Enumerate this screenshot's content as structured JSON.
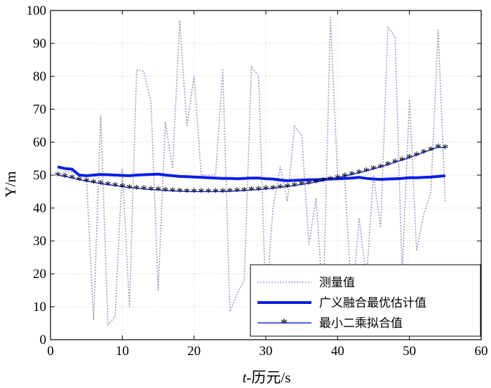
{
  "chart_data": {
    "type": "line",
    "title": "",
    "xlabel_italic": "t",
    "xlabel_rest": "-历元/s",
    "ylabel": "Y/m",
    "xlim": [
      0,
      60
    ],
    "ylim": [
      0,
      100
    ],
    "xticks": [
      0,
      10,
      20,
      30,
      40,
      50,
      60
    ],
    "yticks": [
      0,
      10,
      20,
      30,
      40,
      50,
      60,
      70,
      80,
      90,
      100
    ],
    "grid": true,
    "legend_position": "bottom-right",
    "colors": {
      "measured": "#9a9ac8",
      "fusion": "#0a1ee6",
      "lsq": "#1a2ed8"
    },
    "series": [
      {
        "name": "测量值",
        "style": "dotted",
        "x": [
          1,
          2,
          3,
          4,
          5,
          6,
          7,
          8,
          9,
          10,
          11,
          12,
          13,
          14,
          15,
          16,
          17,
          18,
          19,
          20,
          21,
          22,
          23,
          24,
          25,
          26,
          27,
          28,
          29,
          30,
          31,
          32,
          33,
          34,
          35,
          36,
          37,
          38,
          39,
          40,
          41,
          42,
          43,
          44,
          45,
          46,
          47,
          48,
          49,
          50,
          51,
          52,
          53,
          54,
          55
        ],
        "y": [
          50,
          51,
          51,
          50,
          50,
          6,
          68,
          4.5,
          7,
          52,
          10,
          82,
          81.5,
          72,
          15,
          66,
          52,
          97,
          65,
          80,
          50,
          50,
          50,
          82,
          8.5,
          14,
          18,
          83,
          80,
          10,
          40,
          52.5,
          42,
          65,
          62,
          29,
          43,
          10,
          98,
          49.5,
          49,
          10,
          37,
          18,
          50,
          34,
          95,
          92,
          20,
          73,
          27,
          38,
          45,
          94,
          42
        ]
      },
      {
        "name": "广义融合最优估计值",
        "style": "solid",
        "x": [
          1,
          2,
          3,
          4,
          5,
          6,
          7,
          8,
          9,
          10,
          11,
          12,
          13,
          14,
          15,
          16,
          17,
          18,
          19,
          20,
          21,
          22,
          23,
          24,
          25,
          26,
          27,
          28,
          29,
          30,
          31,
          32,
          33,
          34,
          35,
          36,
          37,
          38,
          39,
          40,
          41,
          42,
          43,
          44,
          45,
          46,
          47,
          48,
          49,
          50,
          51,
          52,
          53,
          54,
          55
        ],
        "y": [
          52.5,
          52,
          51.8,
          50,
          49.8,
          50,
          50.2,
          50.1,
          50,
          49.9,
          49.8,
          50,
          50.1,
          50.2,
          50.3,
          50,
          49.8,
          49.6,
          49.5,
          49.4,
          49.3,
          49.2,
          49.1,
          49,
          49,
          48.9,
          49,
          49.1,
          49.1,
          48.9,
          48.8,
          48.5,
          48.3,
          48.4,
          48.5,
          48.6,
          48.6,
          48.7,
          48.8,
          48.9,
          49,
          49.1,
          49.3,
          49,
          48.8,
          48.7,
          48.8,
          48.9,
          49,
          49.2,
          49.2,
          49.3,
          49.4,
          49.6,
          49.8
        ]
      },
      {
        "name": "最小二乘拟合值",
        "style": "solid-star",
        "x": [
          1,
          2,
          3,
          4,
          5,
          6,
          7,
          8,
          9,
          10,
          11,
          12,
          13,
          14,
          15,
          16,
          17,
          18,
          19,
          20,
          21,
          22,
          23,
          24,
          25,
          26,
          27,
          28,
          29,
          30,
          31,
          32,
          33,
          34,
          35,
          36,
          37,
          38,
          39,
          40,
          41,
          42,
          43,
          44,
          45,
          46,
          47,
          48,
          49,
          50,
          51,
          52,
          53,
          54,
          55
        ],
        "y": [
          50,
          49.6,
          49.1,
          48.6,
          48.2,
          47.8,
          47.4,
          47.1,
          46.8,
          46.5,
          46.2,
          46,
          45.8,
          45.6,
          45.5,
          45.3,
          45.2,
          45.1,
          45,
          45,
          45,
          45,
          45,
          45,
          45.1,
          45.2,
          45.3,
          45.5,
          45.6,
          45.8,
          46,
          46.3,
          46.5,
          46.8,
          47.2,
          47.5,
          47.9,
          48.3,
          48.7,
          49.2,
          49.7,
          50.2,
          50.7,
          51.3,
          51.9,
          52.5,
          53.2,
          53.9,
          54.6,
          55.3,
          56.1,
          56.9,
          57.7,
          58.5,
          58.3
        ]
      }
    ]
  }
}
